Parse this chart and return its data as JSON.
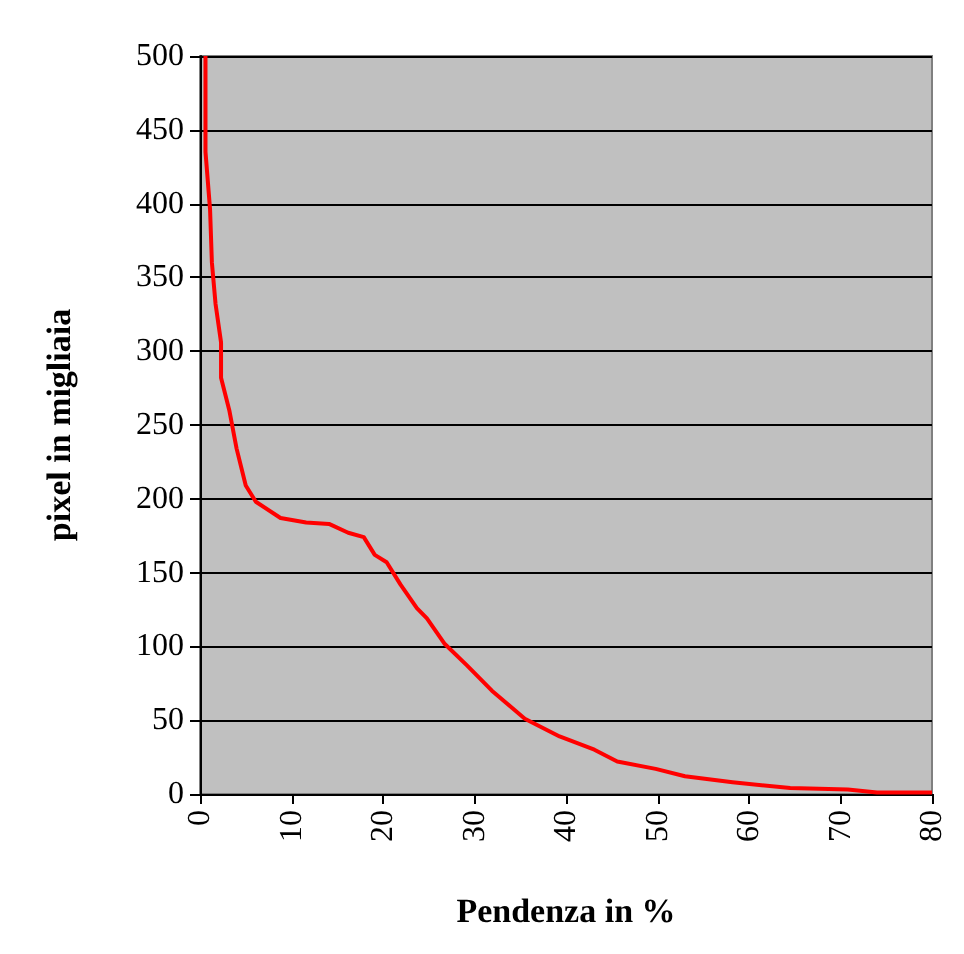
{
  "chart_data": {
    "type": "line",
    "xlabel": "Pendenza in %",
    "ylabel": "pixel in migliaia",
    "x": [
      0.6,
      0.6,
      1.1,
      1.3,
      1.7,
      2.3,
      2.3,
      3.2,
      4.0,
      5.0,
      6.1,
      8.8,
      11.6,
      14.1,
      16.2,
      17.9,
      19.1,
      20.4,
      21.9,
      23.7,
      24.8,
      26.7,
      29.2,
      31.9,
      35.5,
      39.3,
      43.1,
      45.6,
      49.8,
      53.0,
      58.2,
      64.5,
      70.8,
      74,
      80
    ],
    "series": [
      {
        "color": "#ff0000",
        "values": [
          500,
          435,
          396,
          360,
          332,
          306,
          282,
          260,
          234,
          209,
          198,
          187,
          184,
          183,
          177,
          174,
          162,
          157,
          142,
          126,
          119,
          102,
          87,
          70,
          51,
          39,
          30,
          22,
          17,
          12,
          8,
          4,
          3,
          1,
          1
        ]
      }
    ],
    "xlim": [
      0,
      80
    ],
    "xticks": [
      0,
      10,
      20,
      30,
      40,
      50,
      60,
      70,
      80
    ],
    "ylim": [
      0,
      500
    ],
    "yticks": [
      0,
      50,
      100,
      150,
      200,
      250,
      300,
      350,
      400,
      450,
      500
    ],
    "grid": "y",
    "marker": "none",
    "line_style": "solid"
  }
}
